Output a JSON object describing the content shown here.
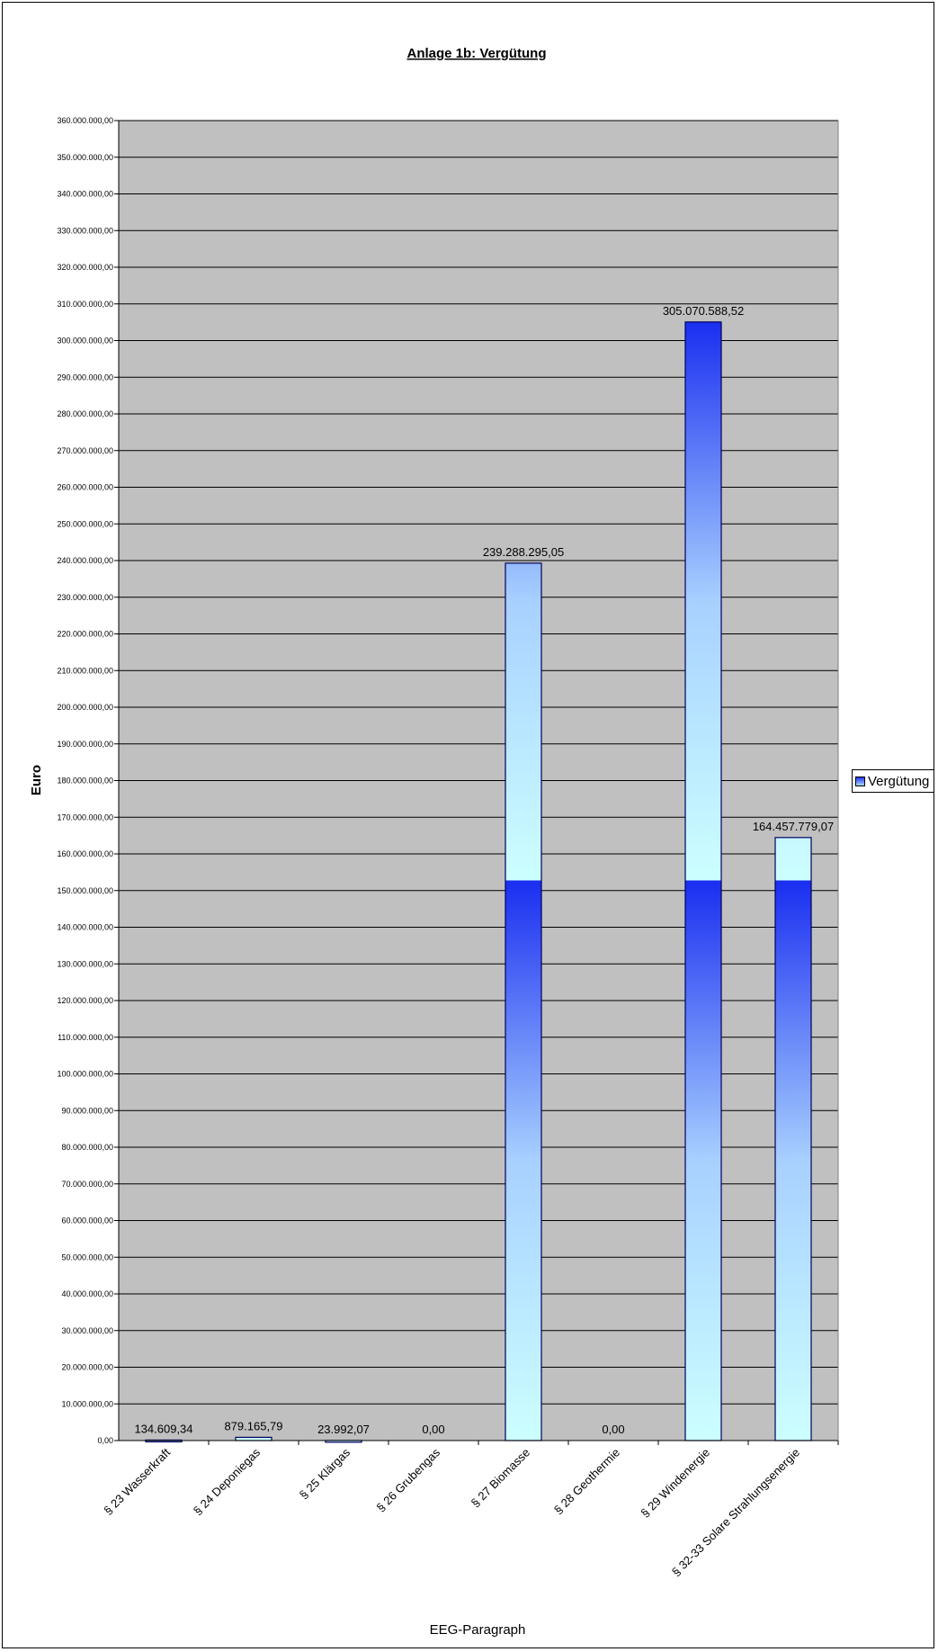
{
  "chart_data": {
    "type": "bar",
    "title": "Anlage 1b: Vergütung",
    "xlabel": "EEG-Paragraph",
    "ylabel": "Euro",
    "ylim": [
      0,
      360000000
    ],
    "ytick_step": 10000000,
    "grid": true,
    "legend_position": "right",
    "categories": [
      "§ 23 Wasserkraft",
      "§ 24 Deponiegas",
      "§ 25 Klärgas",
      "§ 26 Grubengas",
      "§ 27 Biomasse",
      "§ 28 Geothermie",
      "§ 29 Windenergie",
      "§ 32-33 Solare Strahlungsenergie"
    ],
    "series": [
      {
        "name": "Vergütung",
        "values": [
          134609.34,
          879165.79,
          23992.07,
          0,
          239288295.05,
          0,
          305070588.52,
          164457779.07
        ],
        "data_labels": [
          "134.609,34",
          "879.165,79",
          "23.992,07",
          "0,00",
          "239.288.295,05",
          "0,00",
          "305.070.588,52",
          "164.457.779,07"
        ]
      }
    ],
    "colors": {
      "plot_bg": "#c0c0c0",
      "bar_top": "#1a2ef0",
      "bar_mid": "#a8d0ff",
      "bar_bottom": "#ccffff",
      "gridline": "#000000"
    }
  }
}
